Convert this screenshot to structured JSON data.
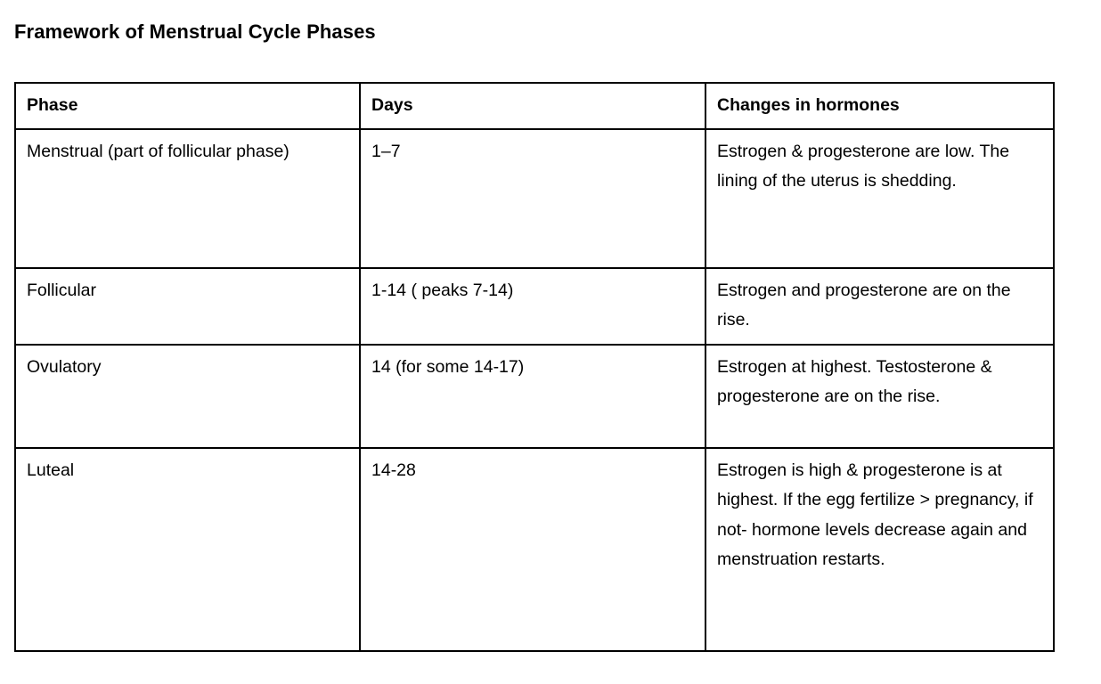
{
  "page": {
    "title": "Framework of Menstrual Cycle Phases"
  },
  "table": {
    "columns": [
      "Phase",
      "Days",
      "Changes in hormones"
    ],
    "rows": [
      {
        "phase": "Menstrual (part of follicular phase)",
        "days": "1–7",
        "hormones": "Estrogen & progesterone are low. The lining of the uterus is shedding."
      },
      {
        "phase": "Follicular",
        "days": "1-14 ( peaks 7-14)",
        "hormones": "Estrogen and progesterone are on the rise."
      },
      {
        "phase": "Ovulatory",
        "days": "14 (for some 14-17)",
        "hormones": "Estrogen at highest. Testosterone & progesterone are on the rise."
      },
      {
        "phase": "Luteal",
        "days": "14-28",
        "hormones": "Estrogen is high & progesterone is at highest. If the egg fertilize > pregnancy, if not- hormone levels decrease again and menstruation restarts."
      }
    ]
  },
  "colors": {
    "text": "#000000",
    "border": "#000000",
    "background": "#ffffff"
  }
}
